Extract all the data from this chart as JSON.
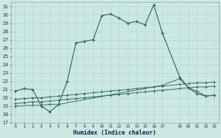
{
  "xlabel": "Humidex (Indice chaleur)",
  "background_color": "#cce8e3",
  "grid_color": "#b8d8d2",
  "line_color": "#2d6b5e",
  "x_ticks": [
    0,
    1,
    2,
    3,
    4,
    5,
    6,
    7,
    8,
    9,
    10,
    11,
    12,
    13,
    14,
    15,
    16,
    17,
    19,
    20,
    21,
    22,
    23
  ],
  "x_tick_labels": [
    "0",
    "1",
    "2",
    "3",
    "4",
    "5",
    "6",
    "7",
    "8",
    "9",
    "10",
    "11",
    "12",
    "13",
    "14",
    "15",
    "16",
    "17",
    "19",
    "20",
    "21",
    "22",
    "23"
  ],
  "xlim": [
    -0.5,
    23.5
  ],
  "ylim": [
    17,
    31.5
  ],
  "y_ticks": [
    17,
    18,
    19,
    20,
    21,
    22,
    23,
    24,
    25,
    26,
    27,
    28,
    29,
    30,
    31
  ],
  "line1_x": [
    0,
    1,
    2,
    3,
    4,
    5,
    6,
    7,
    8,
    9,
    10,
    11,
    12,
    13,
    14,
    15,
    16,
    17,
    19,
    20,
    21,
    22,
    23
  ],
  "line1_y": [
    20.8,
    21.1,
    21.0,
    19.0,
    18.3,
    19.2,
    22.0,
    26.6,
    26.8,
    27.0,
    29.9,
    30.1,
    29.6,
    29.0,
    29.2,
    28.8,
    31.2,
    27.8,
    22.5,
    21.2,
    20.5,
    20.2,
    20.3
  ],
  "line2_x": [
    0,
    2,
    3,
    4,
    5,
    17,
    19,
    20,
    21,
    22,
    23
  ],
  "line2_y": [
    19.0,
    19.1,
    19.1,
    19.2,
    19.2,
    21.5,
    22.3,
    21.2,
    20.8,
    20.2,
    20.3
  ],
  "line3_x": [
    0,
    1,
    2,
    3,
    4,
    5,
    6,
    7,
    8,
    9,
    10,
    11,
    12,
    13,
    14,
    15,
    16,
    17,
    19,
    20,
    21,
    22,
    23
  ],
  "line3_y": [
    19.3,
    19.4,
    19.5,
    19.5,
    19.6,
    19.7,
    19.8,
    19.9,
    20.0,
    20.1,
    20.2,
    20.3,
    20.4,
    20.5,
    20.6,
    20.7,
    20.8,
    20.9,
    21.1,
    21.2,
    21.3,
    21.3,
    21.4
  ],
  "line4_x": [
    0,
    1,
    2,
    3,
    4,
    5,
    6,
    7,
    8,
    9,
    10,
    11,
    12,
    13,
    14,
    15,
    16,
    17,
    19,
    20,
    21,
    22,
    23
  ],
  "line4_y": [
    19.8,
    19.9,
    20.0,
    20.0,
    20.1,
    20.2,
    20.3,
    20.4,
    20.5,
    20.6,
    20.7,
    20.8,
    20.9,
    21.0,
    21.1,
    21.2,
    21.3,
    21.4,
    21.6,
    21.7,
    21.8,
    21.8,
    21.9
  ]
}
